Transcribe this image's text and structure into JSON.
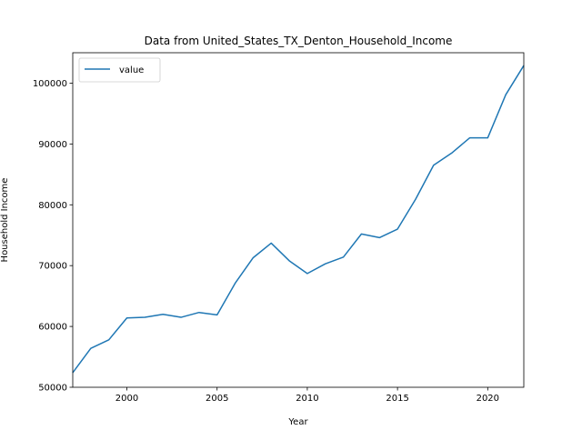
{
  "chart_data": {
    "type": "line",
    "title": "Data from United_States_TX_Denton_Household_Income",
    "xlabel": "Year",
    "ylabel": "Household Income",
    "xlim": [
      1997,
      2022
    ],
    "ylim": [
      50000,
      105000
    ],
    "x_ticks": [
      2000,
      2005,
      2010,
      2015,
      2020
    ],
    "y_ticks": [
      50000,
      60000,
      70000,
      80000,
      90000,
      100000
    ],
    "grid": false,
    "legend": "upper-left",
    "series": [
      {
        "name": "value",
        "color": "#1f77b4",
        "x": [
          1997,
          1998,
          1999,
          2000,
          2001,
          2002,
          2003,
          2004,
          2005,
          2006,
          2007,
          2008,
          2009,
          2010,
          2011,
          2012,
          2013,
          2014,
          2015,
          2016,
          2017,
          2018,
          2019,
          2020,
          2021,
          2022
        ],
        "y": [
          52400,
          56400,
          57800,
          61400,
          61500,
          62000,
          61500,
          62300,
          61900,
          67100,
          71300,
          73700,
          70800,
          68700,
          70300,
          71400,
          75200,
          74600,
          76000,
          80900,
          86500,
          88500,
          91000,
          91000,
          98100,
          102900
        ]
      }
    ]
  }
}
